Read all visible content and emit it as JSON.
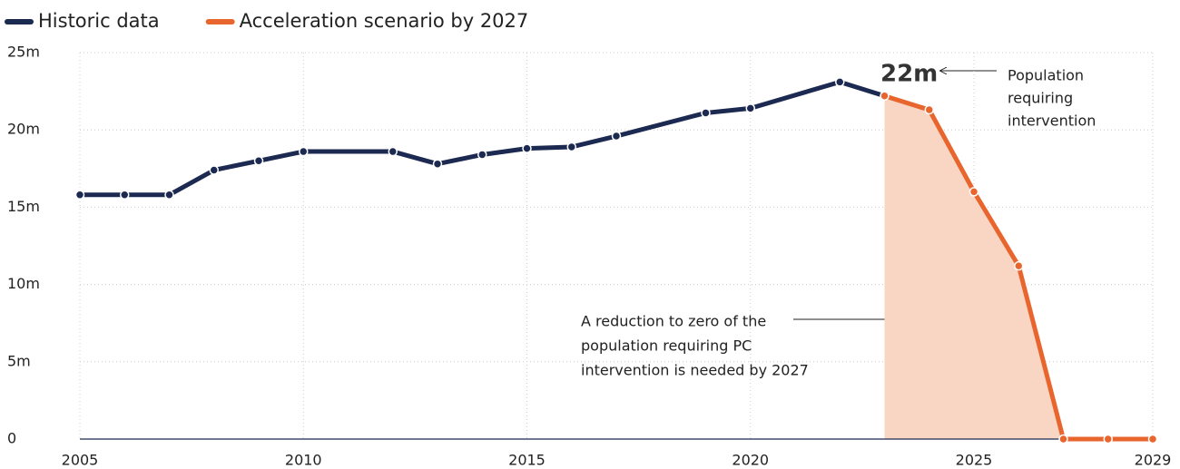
{
  "chart_data": {
    "type": "line",
    "series": [
      {
        "name": "Historic data",
        "color": "#1c2951",
        "x": [
          2005,
          2006,
          2007,
          2008,
          2009,
          2010,
          2012,
          2013,
          2014,
          2015,
          2016,
          2017,
          2019,
          2020,
          2022,
          2023
        ],
        "values": [
          15.8,
          15.8,
          15.8,
          17.4,
          18.0,
          18.6,
          18.6,
          17.8,
          18.4,
          18.8,
          18.9,
          19.6,
          21.1,
          21.4,
          23.1,
          22.2
        ]
      },
      {
        "name": "Acceleration scenario by 2027",
        "color": "#e8652e",
        "area_color": "#f9d5c4",
        "x": [
          2023,
          2024,
          2025,
          2026,
          2027,
          2028,
          2029
        ],
        "values": [
          22.2,
          21.3,
          16.0,
          11.2,
          0,
          0,
          0
        ]
      }
    ],
    "xlim": [
      2005,
      2029
    ],
    "xticks": [
      2005,
      2010,
      2015,
      2020,
      2025,
      2029
    ],
    "ylim": [
      0,
      25
    ],
    "yticks": [
      0,
      {
        "value": 5,
        "label": "5m"
      },
      {
        "value": 10,
        "label": "10m"
      },
      {
        "value": 15,
        "label": "15m"
      },
      {
        "value": 20,
        "label": "20m"
      },
      {
        "value": 25,
        "label": "25m"
      }
    ],
    "grid": true,
    "annotations": [
      {
        "text": "22m"
      },
      {
        "lines": [
          "Population",
          "requiring",
          "intervention"
        ]
      },
      {
        "lines": [
          "A  reduction to zero of the",
          "population requiring PC",
          "intervention is needed by 2027"
        ]
      }
    ]
  }
}
